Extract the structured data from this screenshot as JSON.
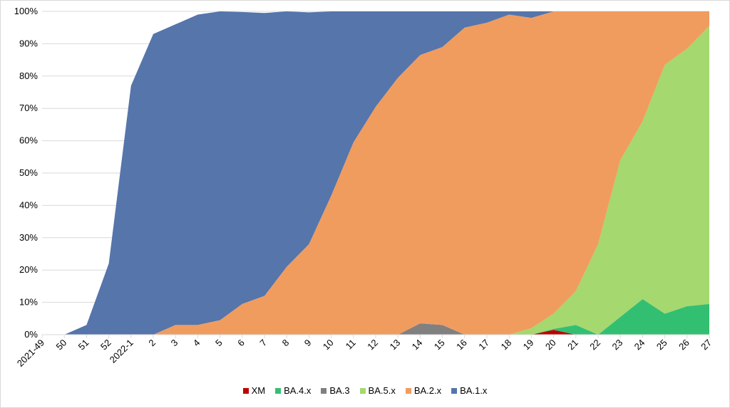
{
  "chart_data": {
    "type": "area",
    "stacked": true,
    "title": "",
    "xlabel": "",
    "ylabel": "",
    "ylim": [
      0,
      100
    ],
    "y_ticks": [
      "0%",
      "10%",
      "20%",
      "30%",
      "40%",
      "50%",
      "60%",
      "70%",
      "80%",
      "90%",
      "100%"
    ],
    "grid": true,
    "legend_position": "bottom",
    "categories": [
      "2021-49",
      "50",
      "51",
      "52",
      "2022-1",
      "2",
      "3",
      "4",
      "5",
      "6",
      "7",
      "8",
      "9",
      "10",
      "11",
      "12",
      "13",
      "14",
      "15",
      "16",
      "17",
      "18",
      "19",
      "20",
      "21",
      "22",
      "23",
      "24",
      "25",
      "26",
      "27"
    ],
    "series": [
      {
        "name": "XM",
        "color": "#C00000",
        "values": [
          0,
          0,
          0,
          0,
          0,
          0,
          0,
          0,
          0,
          0,
          0,
          0,
          0,
          0,
          0,
          0,
          0,
          0,
          0,
          0,
          0,
          0,
          0,
          1.5,
          0,
          0,
          0,
          0,
          0,
          0,
          0
        ]
      },
      {
        "name": "BA.4.x",
        "color": "#33BF72",
        "values": [
          0,
          0,
          0,
          0,
          0,
          0,
          0,
          0,
          0,
          0,
          0,
          0,
          0,
          0,
          0,
          0,
          0,
          0,
          0,
          0,
          0,
          0,
          0,
          0.3,
          3,
          0,
          5.5,
          11,
          6.5,
          8.8,
          9.5
        ]
      },
      {
        "name": "BA.3",
        "color": "#808080",
        "values": [
          0,
          0,
          0,
          0,
          0,
          0,
          0,
          0,
          0,
          0,
          0,
          0,
          0,
          0,
          0,
          0,
          0,
          3.5,
          3,
          0,
          0,
          0,
          0,
          0,
          0,
          0,
          0,
          0,
          0,
          0,
          0
        ]
      },
      {
        "name": "BA.5.x",
        "color": "#A5D86F",
        "values": [
          0,
          0,
          0,
          0,
          0,
          0,
          0,
          0,
          0,
          0,
          0,
          0,
          0,
          0,
          0,
          0,
          0,
          0,
          0,
          0,
          0,
          0,
          2,
          4.7,
          10.5,
          28,
          48.5,
          55,
          77,
          79.7,
          86
        ]
      },
      {
        "name": "BA.2.x",
        "color": "#F09C5F",
        "values": [
          0,
          0,
          0,
          0,
          0,
          0,
          3,
          3,
          4.5,
          9.5,
          12,
          21,
          28,
          43,
          59.5,
          70.5,
          79.5,
          83,
          86,
          95,
          96.5,
          99,
          96,
          93.5,
          86.5,
          72,
          46,
          34,
          16.5,
          11.5,
          4.5
        ]
      },
      {
        "name": "BA.1.x",
        "color": "#5575AB",
        "values": [
          0,
          0,
          3,
          22,
          77,
          93,
          93,
          96,
          95.5,
          90.3,
          87.5,
          79,
          71.7,
          57,
          40.5,
          29.5,
          20.5,
          13.5,
          11,
          5,
          3.5,
          1,
          2,
          0,
          0,
          0,
          0,
          0,
          0,
          0,
          0
        ]
      }
    ]
  }
}
